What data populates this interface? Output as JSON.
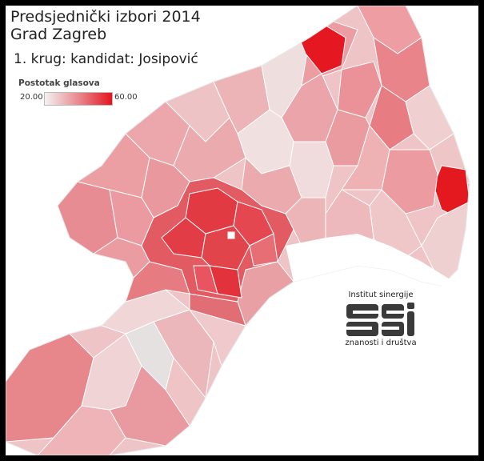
{
  "title": {
    "line1": "Predsjednički izbori 2014",
    "line2": "Grad Zagreb",
    "subtitle": "1. krug: kandidat: Josipović"
  },
  "legend": {
    "title": "Postotak glasova",
    "min_label": "20.00",
    "max_label": "60.00",
    "color_min": "#f2f2f2",
    "color_max": "#e5141f"
  },
  "logo": {
    "top_text": "Institut sinergije",
    "bottom_text": "znanosti i društva"
  },
  "colors": {
    "frame": "#000000",
    "background": "#ffffff",
    "border": "#ffffff"
  }
}
